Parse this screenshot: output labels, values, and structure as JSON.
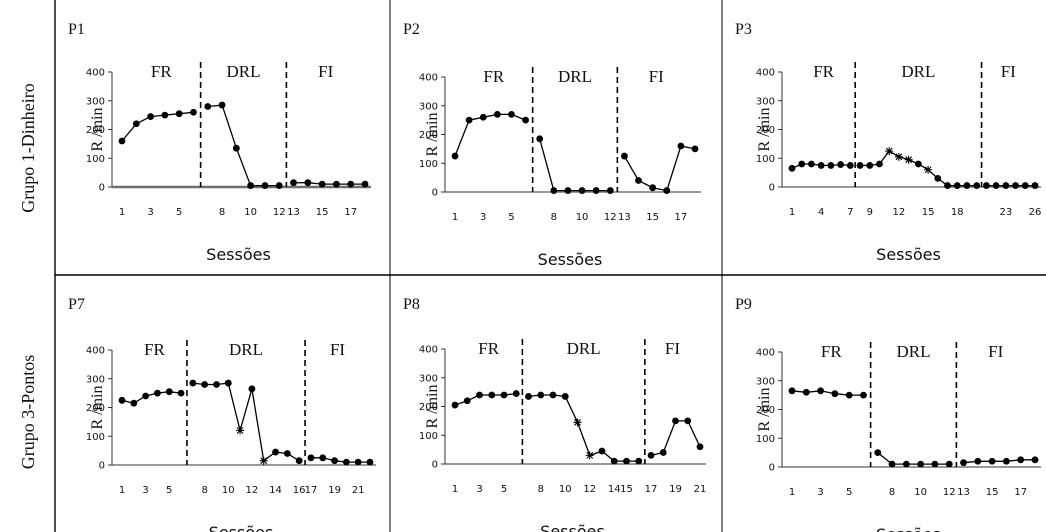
{
  "chart_data": {
    "type": "line",
    "xlabel": "Sessões",
    "ylabel": "R /min",
    "ylim": [
      0,
      400
    ],
    "yticks": [
      0,
      100,
      200,
      300,
      400
    ],
    "rows": [
      {
        "label": "Grupo 1-Dinheiro"
      },
      {
        "label": "Grupo 3-Pontos"
      }
    ],
    "phases": [
      "FR",
      "DRL",
      "FI"
    ],
    "panels": [
      {
        "id": "P1",
        "xmax": 18,
        "xticks": [
          1,
          3,
          5,
          8,
          10,
          12,
          13,
          15,
          17
        ],
        "dividers": [
          6.5,
          12.5
        ],
        "baseline_color": "#6f6f6f",
        "points": [
          [
            1,
            160
          ],
          [
            2,
            220
          ],
          [
            3,
            245
          ],
          [
            4,
            250
          ],
          [
            5,
            255
          ],
          [
            6,
            260
          ],
          [
            7,
            280
          ],
          [
            8,
            285
          ],
          [
            9,
            135
          ],
          [
            10,
            5
          ],
          [
            11,
            5
          ],
          [
            12,
            5
          ],
          [
            13,
            15
          ],
          [
            14,
            15
          ],
          [
            15,
            10
          ],
          [
            16,
            10
          ],
          [
            17,
            10
          ],
          [
            18,
            10
          ]
        ],
        "star_points": [],
        "breaks": [
          6,
          12
        ]
      },
      {
        "id": "P2",
        "xmax": 18,
        "xticks": [
          1,
          3,
          5,
          8,
          10,
          12,
          13,
          15,
          17
        ],
        "dividers": [
          6.5,
          12.5
        ],
        "points": [
          [
            1,
            125
          ],
          [
            2,
            250
          ],
          [
            3,
            260
          ],
          [
            4,
            270
          ],
          [
            5,
            270
          ],
          [
            6,
            250
          ],
          [
            7,
            185
          ],
          [
            8,
            5
          ],
          [
            9,
            5
          ],
          [
            10,
            5
          ],
          [
            11,
            5
          ],
          [
            12,
            5
          ],
          [
            13,
            125
          ],
          [
            14,
            40
          ],
          [
            15,
            15
          ],
          [
            16,
            5
          ],
          [
            17,
            160
          ],
          [
            18,
            150
          ]
        ],
        "star_points": [],
        "breaks": [
          6,
          12
        ]
      },
      {
        "id": "P3",
        "xmax": 26,
        "xticks": [
          1,
          4,
          7,
          9,
          12,
          15,
          18,
          23,
          26
        ],
        "dividers": [
          7.5,
          20.5
        ],
        "points": [
          [
            1,
            65
          ],
          [
            2,
            80
          ],
          [
            3,
            80
          ],
          [
            4,
            75
          ],
          [
            5,
            75
          ],
          [
            6,
            78
          ],
          [
            7,
            75
          ],
          [
            8,
            75
          ],
          [
            9,
            75
          ],
          [
            10,
            80
          ],
          [
            11,
            125
          ],
          [
            12,
            105
          ],
          [
            13,
            95
          ],
          [
            14,
            80
          ],
          [
            15,
            60
          ],
          [
            16,
            30
          ],
          [
            17,
            5
          ],
          [
            18,
            5
          ],
          [
            19,
            5
          ],
          [
            20,
            5
          ],
          [
            21,
            5
          ],
          [
            22,
            5
          ],
          [
            23,
            5
          ],
          [
            24,
            5
          ],
          [
            25,
            5
          ],
          [
            26,
            5
          ]
        ],
        "star_points": [
          11,
          12,
          13,
          15
        ],
        "breaks": [
          7,
          20
        ]
      },
      {
        "id": "P7",
        "xmax": 22,
        "xticks": [
          1,
          3,
          5,
          8,
          10,
          12,
          14,
          16,
          17,
          19,
          21
        ],
        "dividers": [
          6.5,
          16.5
        ],
        "points": [
          [
            1,
            225
          ],
          [
            2,
            215
          ],
          [
            3,
            240
          ],
          [
            4,
            250
          ],
          [
            5,
            255
          ],
          [
            6,
            250
          ],
          [
            7,
            285
          ],
          [
            8,
            280
          ],
          [
            9,
            280
          ],
          [
            10,
            285
          ],
          [
            11,
            120
          ],
          [
            12,
            265
          ],
          [
            13,
            15
          ],
          [
            14,
            45
          ],
          [
            15,
            40
          ],
          [
            16,
            15
          ],
          [
            17,
            25
          ],
          [
            18,
            25
          ],
          [
            19,
            15
          ],
          [
            20,
            10
          ],
          [
            21,
            10
          ],
          [
            22,
            10
          ]
        ],
        "star_points": [
          11,
          13
        ],
        "breaks": [
          6,
          16
        ]
      },
      {
        "id": "P8",
        "xmax": 21,
        "xticks": [
          1,
          3,
          5,
          8,
          10,
          12,
          14,
          15,
          17,
          19,
          21
        ],
        "dividers": [
          6.5,
          16.5
        ],
        "points": [
          [
            1,
            205
          ],
          [
            2,
            220
          ],
          [
            3,
            240
          ],
          [
            4,
            240
          ],
          [
            5,
            240
          ],
          [
            6,
            245
          ],
          [
            7,
            235
          ],
          [
            8,
            240
          ],
          [
            9,
            240
          ],
          [
            10,
            235
          ],
          [
            11,
            145
          ],
          [
            12,
            30
          ],
          [
            13,
            45
          ],
          [
            14,
            10
          ],
          [
            15,
            10
          ],
          [
            16,
            10
          ],
          [
            17,
            30
          ],
          [
            18,
            40
          ],
          [
            19,
            150
          ],
          [
            20,
            150
          ],
          [
            21,
            60
          ]
        ],
        "star_points": [
          11,
          12
        ],
        "breaks": [
          6,
          16
        ]
      },
      {
        "id": "P9",
        "xmax": 18,
        "xticks": [
          1,
          3,
          5,
          8,
          10,
          12,
          13,
          15,
          17
        ],
        "dividers": [
          6.5,
          12.5
        ],
        "points": [
          [
            1,
            265
          ],
          [
            2,
            260
          ],
          [
            3,
            265
          ],
          [
            4,
            255
          ],
          [
            5,
            250
          ],
          [
            6,
            250
          ],
          [
            7,
            50
          ],
          [
            8,
            10
          ],
          [
            9,
            10
          ],
          [
            10,
            10
          ],
          [
            11,
            10
          ],
          [
            12,
            10
          ],
          [
            13,
            15
          ],
          [
            14,
            20
          ],
          [
            15,
            20
          ],
          [
            16,
            20
          ],
          [
            17,
            25
          ],
          [
            18,
            25
          ]
        ],
        "star_points": [],
        "breaks": [
          6,
          12
        ]
      }
    ]
  }
}
